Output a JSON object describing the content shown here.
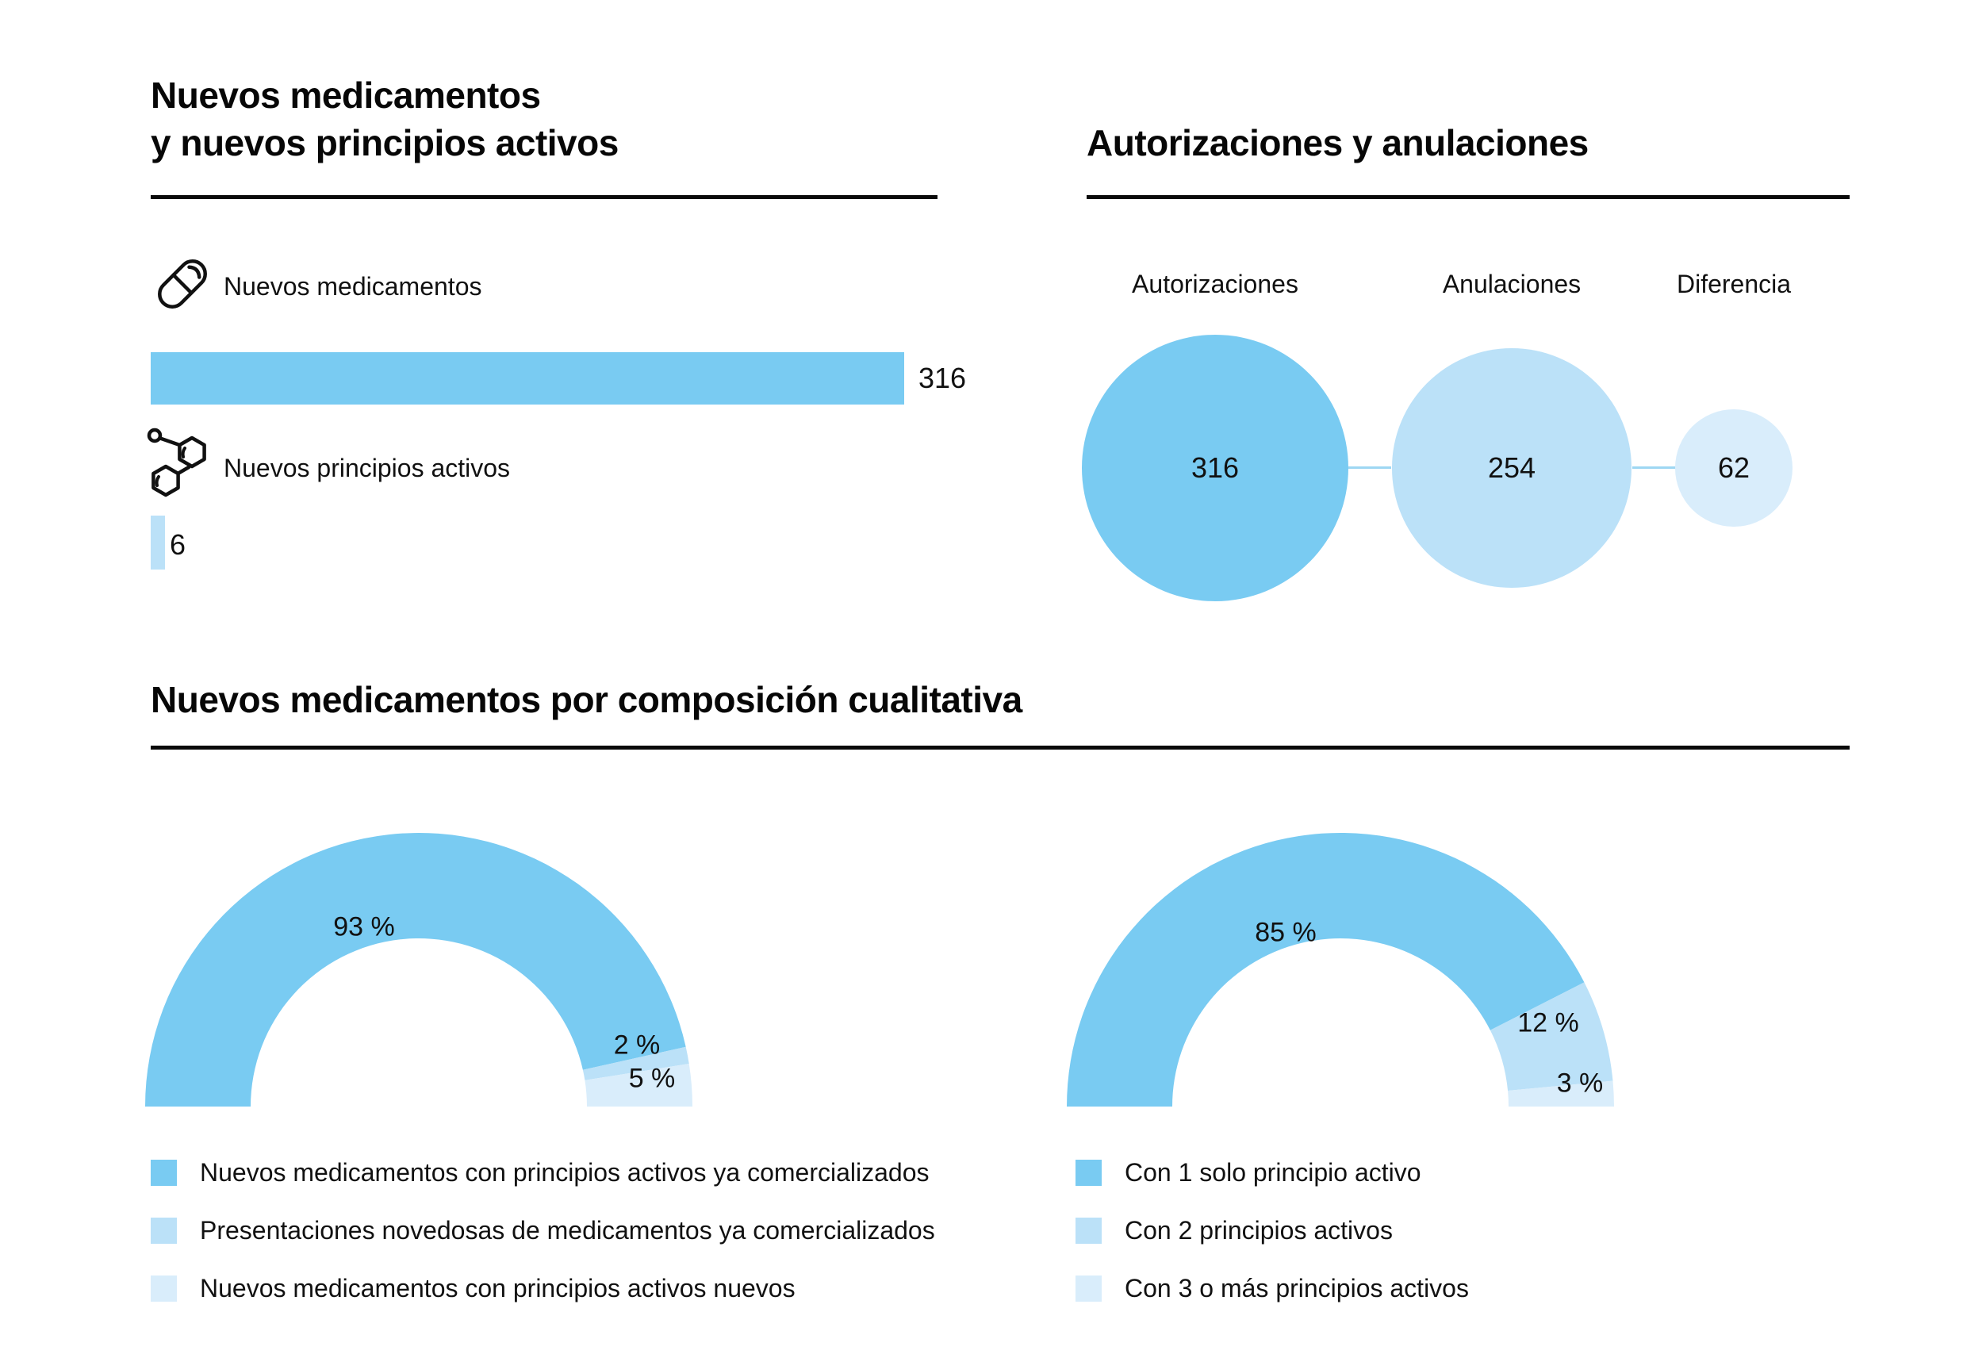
{
  "colors": {
    "primary": "#79CBF2",
    "secondary": "#BBE1F8",
    "tertiary": "#D9EDFB",
    "connector": "#9ED7F3",
    "ink": "#0a0a0a"
  },
  "chart_data": [
    {
      "type": "bar",
      "orientation": "horizontal",
      "title_line1": "Nuevos medicamentos",
      "title_line2": "y nuevos principios activos",
      "xmax": 316,
      "rows": [
        {
          "icon": "pill-icon",
          "label": "Nuevos medicamentos",
          "value": 316,
          "value_label": "316",
          "color_key": "primary"
        },
        {
          "icon": "molecule-icon",
          "label": "Nuevos principios activos",
          "value": 6,
          "value_label": "6",
          "color_key": "secondary"
        }
      ]
    },
    {
      "type": "bubble",
      "title": "Autorizaciones y anulaciones",
      "items": [
        {
          "label": "Autorizaciones",
          "value": 316,
          "value_label": "316",
          "color_key": "primary"
        },
        {
          "label": "Anulaciones",
          "value": 254,
          "value_label": "254",
          "color_key": "secondary"
        },
        {
          "label": "Diferencia",
          "value": 62,
          "value_label": "62",
          "color_key": "tertiary"
        }
      ]
    },
    {
      "type": "pie",
      "variant": "semicircle-donut",
      "title": "Nuevos medicamentos por composición cualitativa",
      "slices": [
        {
          "label": "93 %",
          "value": 93,
          "color_key": "primary"
        },
        {
          "label": "2 %",
          "value": 2,
          "color_key": "secondary"
        },
        {
          "label": "5 %",
          "value": 5,
          "color_key": "tertiary"
        }
      ],
      "legend": [
        {
          "label": "Nuevos medicamentos con principios activos ya comercializados",
          "color_key": "primary"
        },
        {
          "label": "Presentaciones novedosas de medicamentos ya comercializados",
          "color_key": "secondary"
        },
        {
          "label": "Nuevos medicamentos con principios activos nuevos",
          "color_key": "tertiary"
        }
      ]
    },
    {
      "type": "pie",
      "variant": "semicircle-donut",
      "slices": [
        {
          "label": "85 %",
          "value": 85,
          "color_key": "primary"
        },
        {
          "label": "12 %",
          "value": 12,
          "color_key": "secondary"
        },
        {
          "label": "3 %",
          "value": 3,
          "color_key": "tertiary"
        }
      ],
      "legend": [
        {
          "label": "Con 1 solo principio activo",
          "color_key": "primary"
        },
        {
          "label": "Con 2 principios activos",
          "color_key": "secondary"
        },
        {
          "label": "Con 3 o más principios activos",
          "color_key": "tertiary"
        }
      ]
    }
  ]
}
